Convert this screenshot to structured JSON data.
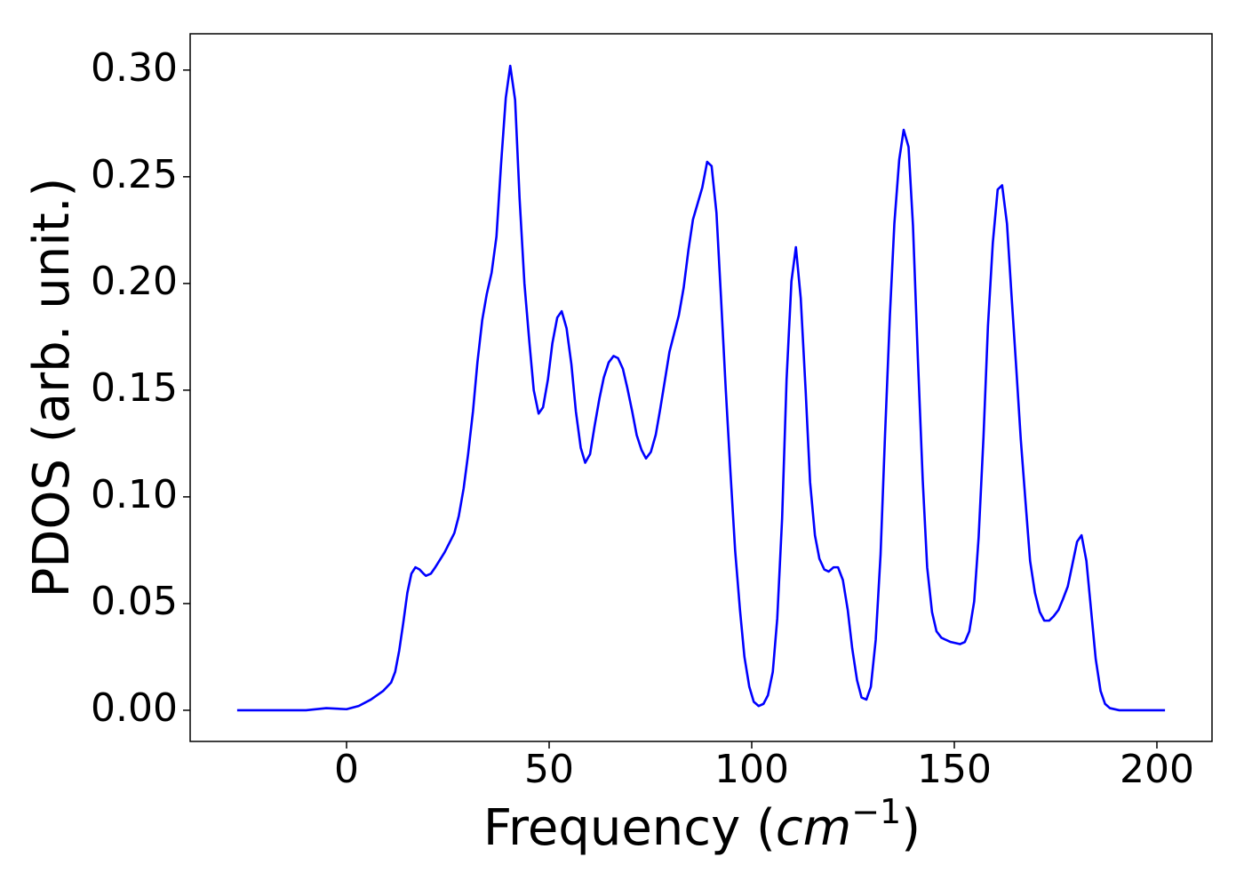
{
  "chart_data": {
    "type": "line",
    "x_label_parts": [
      "Frequency (",
      "cm",
      "−1",
      ")"
    ],
    "y_label": "PDOS (arb. unit.)",
    "xlim": [
      -38.6,
      213.6
    ],
    "ylim": [
      -0.0146,
      0.317
    ],
    "xticks": [
      0,
      50,
      100,
      150,
      200
    ],
    "yticks": [
      {
        "value": 0,
        "label": "0.00"
      },
      {
        "value": 0.05,
        "label": "0.05"
      },
      {
        "value": 0.1,
        "label": "0.10"
      },
      {
        "value": 0.15,
        "label": "0.15"
      },
      {
        "value": 0.2,
        "label": "0.20"
      },
      {
        "value": 0.25,
        "label": "0.25"
      },
      {
        "value": 0.3,
        "label": "0.30"
      }
    ],
    "x": [
      -27,
      -10,
      -5,
      0,
      3,
      6,
      9,
      11,
      12,
      13,
      14,
      15,
      16,
      17,
      18,
      19,
      19.6,
      20.8,
      21.9,
      24.2,
      26.6,
      27.7,
      28.9,
      30.0,
      31.2,
      32.3,
      33.5,
      34.6,
      35.8,
      37.0,
      38.1,
      39.3,
      40.4,
      41.6,
      42.7,
      43.9,
      45.1,
      46.2,
      47.4,
      48.5,
      49.7,
      50.8,
      52.0,
      53.1,
      54.3,
      55.5,
      56.6,
      57.8,
      58.9,
      60.1,
      61.2,
      62.4,
      63.5,
      64.7,
      65.9,
      67.0,
      68.2,
      69.3,
      70.5,
      71.6,
      72.8,
      73.9,
      75.1,
      76.3,
      77.4,
      78.6,
      79.7,
      82.0,
      83.2,
      84.4,
      85.5,
      87.8,
      89.0,
      90.1,
      91.3,
      92.4,
      93.6,
      94.8,
      95.9,
      97.1,
      98.2,
      99.4,
      100.5,
      101.7,
      102.9,
      104.0,
      105.2,
      106.3,
      107.5,
      108.6,
      109.8,
      110.9,
      112.1,
      113.3,
      114.4,
      115.6,
      116.7,
      117.9,
      119.0,
      120.2,
      121.3,
      122.5,
      123.7,
      124.8,
      126.0,
      127.1,
      128.3,
      129.4,
      130.6,
      131.8,
      132.9,
      134.1,
      135.2,
      136.4,
      137.5,
      138.7,
      139.8,
      141.0,
      142.2,
      143.3,
      144.5,
      145.6,
      146.8,
      147.9,
      149.1,
      151.4,
      152.6,
      153.7,
      154.9,
      156.0,
      157.2,
      158.3,
      159.5,
      160.7,
      161.8,
      163.0,
      164.1,
      165.3,
      166.4,
      167.6,
      168.7,
      169.9,
      171.1,
      172.2,
      173.4,
      174.5,
      175.7,
      176.8,
      178.0,
      179.1,
      180.3,
      181.4,
      182.6,
      183.8,
      184.9,
      186.1,
      187.2,
      188.4,
      190.7,
      196,
      202
    ],
    "series": [
      {
        "color": "#0000ff",
        "values": [
          0,
          0,
          0.001,
          0.0005,
          0.002,
          0.005,
          0.009,
          0.013,
          0.018,
          0.028,
          0.041,
          0.055,
          0.064,
          0.067,
          0.066,
          0.064,
          0.063,
          0.064,
          0.067,
          0.074,
          0.083,
          0.091,
          0.104,
          0.12,
          0.14,
          0.163,
          0.183,
          0.195,
          0.205,
          0.222,
          0.255,
          0.287,
          0.302,
          0.286,
          0.24,
          0.2,
          0.173,
          0.15,
          0.139,
          0.142,
          0.155,
          0.172,
          0.184,
          0.187,
          0.179,
          0.162,
          0.14,
          0.123,
          0.116,
          0.12,
          0.133,
          0.146,
          0.156,
          0.163,
          0.166,
          0.165,
          0.16,
          0.151,
          0.14,
          0.129,
          0.122,
          0.118,
          0.121,
          0.129,
          0.141,
          0.155,
          0.168,
          0.185,
          0.198,
          0.216,
          0.23,
          0.245,
          0.257,
          0.255,
          0.233,
          0.194,
          0.15,
          0.11,
          0.075,
          0.047,
          0.025,
          0.011,
          0.004,
          0.002,
          0.003,
          0.007,
          0.018,
          0.043,
          0.09,
          0.155,
          0.201,
          0.217,
          0.193,
          0.15,
          0.107,
          0.082,
          0.071,
          0.066,
          0.065,
          0.067,
          0.067,
          0.061,
          0.047,
          0.029,
          0.014,
          0.006,
          0.005,
          0.011,
          0.033,
          0.073,
          0.129,
          0.185,
          0.228,
          0.258,
          0.272,
          0.264,
          0.227,
          0.165,
          0.108,
          0.067,
          0.046,
          0.037,
          0.034,
          0.033,
          0.032,
          0.031,
          0.032,
          0.037,
          0.051,
          0.081,
          0.128,
          0.18,
          0.219,
          0.244,
          0.246,
          0.228,
          0.195,
          0.16,
          0.127,
          0.097,
          0.07,
          0.055,
          0.046,
          0.042,
          0.042,
          0.044,
          0.047,
          0.052,
          0.058,
          0.068,
          0.079,
          0.082,
          0.07,
          0.046,
          0.024,
          0.009,
          0.003,
          0.001,
          0,
          0,
          0
        ]
      }
    ],
    "grid": false
  }
}
